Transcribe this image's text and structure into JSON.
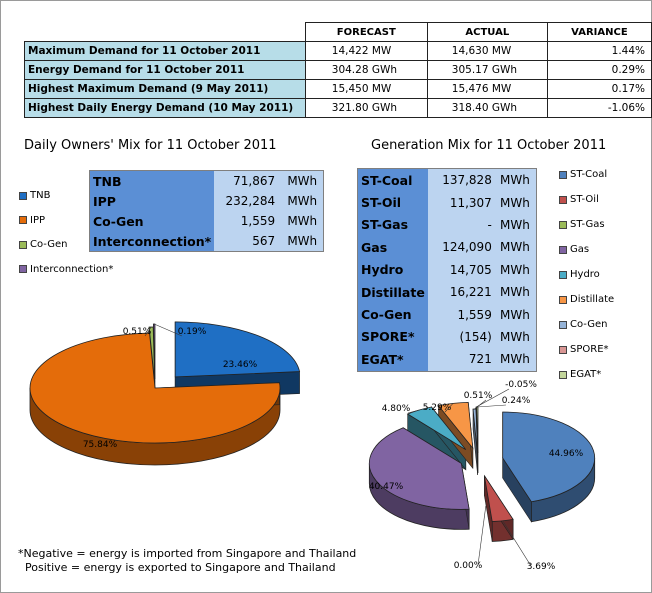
{
  "demand_table": {
    "headers": [
      "FORECAST",
      "ACTUAL",
      "VARIANCE"
    ],
    "rows": [
      {
        "label": "Maximum Demand for 11 October 2011",
        "forecast": "14,422  MW",
        "actual": "14,630  MW",
        "variance": "1.44%"
      },
      {
        "label": "Energy Demand for 11 October 2011",
        "forecast": "304.28  GWh",
        "actual": "305.17  GWh",
        "variance": "0.29%"
      },
      {
        "label": "Highest Maximum Demand (9 May 2011)",
        "forecast": "15,450  MW",
        "actual": "15,476  MW",
        "variance": "0.17%"
      },
      {
        "label": "Highest Daily Energy Demand (10 May 2011)",
        "forecast": "321.80  GWh",
        "actual": "318.40  GWh",
        "variance": "-1.06%"
      }
    ]
  },
  "owners_title": "Daily Owners' Mix for 11 October 2011",
  "gen_title": "Generation Mix for 11 October 2011",
  "owners_table": [
    {
      "name": "TNB",
      "value": "71,867",
      "unit": "MWh"
    },
    {
      "name": "IPP",
      "value": "232,284",
      "unit": "MWh"
    },
    {
      "name": "Co-Gen",
      "value": "1,559",
      "unit": "MWh"
    },
    {
      "name": "Interconnection*",
      "value": "567",
      "unit": "MWh"
    }
  ],
  "gen_table": [
    {
      "name": "ST-Coal",
      "value": "137,828",
      "unit": "MWh"
    },
    {
      "name": "ST-Oil",
      "value": "11,307",
      "unit": "MWh"
    },
    {
      "name": "ST-Gas",
      "value": "-",
      "unit": "MWh"
    },
    {
      "name": "Gas",
      "value": "124,090",
      "unit": "MWh"
    },
    {
      "name": "Hydro",
      "value": "14,705",
      "unit": "MWh"
    },
    {
      "name": "Distillate",
      "value": "16,221",
      "unit": "MWh"
    },
    {
      "name": "Co-Gen",
      "value": "1,559",
      "unit": "MWh"
    },
    {
      "name": "SPORE*",
      "value": "(154)",
      "unit": "MWh"
    },
    {
      "name": "EGAT*",
      "value": "721",
      "unit": "MWh"
    }
  ],
  "note_lines": [
    "*Negative = energy is imported from Singapore and Thailand",
    "  Positive = energy is exported to Singapore and Thailand"
  ],
  "chart_data": [
    {
      "type": "pie",
      "title": "Daily Owners' Mix for 11 October 2011",
      "categories": [
        "TNB",
        "IPP",
        "Co-Gen",
        "Interconnection*"
      ],
      "values": [
        23.46,
        75.84,
        0.51,
        0.19
      ],
      "labels": [
        "23.46%",
        "75.84%",
        "0.51%",
        "0.19%"
      ],
      "colors": [
        "#1f6fc4",
        "#e46c0a",
        "#9bbb59",
        "#8064a2"
      ]
    },
    {
      "type": "pie",
      "title": "Generation Mix for 11 October 2011",
      "categories": [
        "ST-Coal",
        "ST-Oil",
        "ST-Gas",
        "Gas",
        "Hydro",
        "Distillate",
        "Co-Gen",
        "SPORE*",
        "EGAT*"
      ],
      "values": [
        44.96,
        3.69,
        0.0,
        40.47,
        4.8,
        5.29,
        0.51,
        -0.05,
        0.24
      ],
      "labels": [
        "44.96%",
        "3.69%",
        "0.00%",
        "40.47%",
        "4.80%",
        "5.29%",
        "0.51%",
        "-0.05%",
        "0.24%"
      ],
      "colors": [
        "#4f81bd",
        "#c0504d",
        "#9bbb59",
        "#8064a2",
        "#4bacc6",
        "#f79646",
        "#95b3d7",
        "#d99694",
        "#c3d69b"
      ]
    }
  ]
}
